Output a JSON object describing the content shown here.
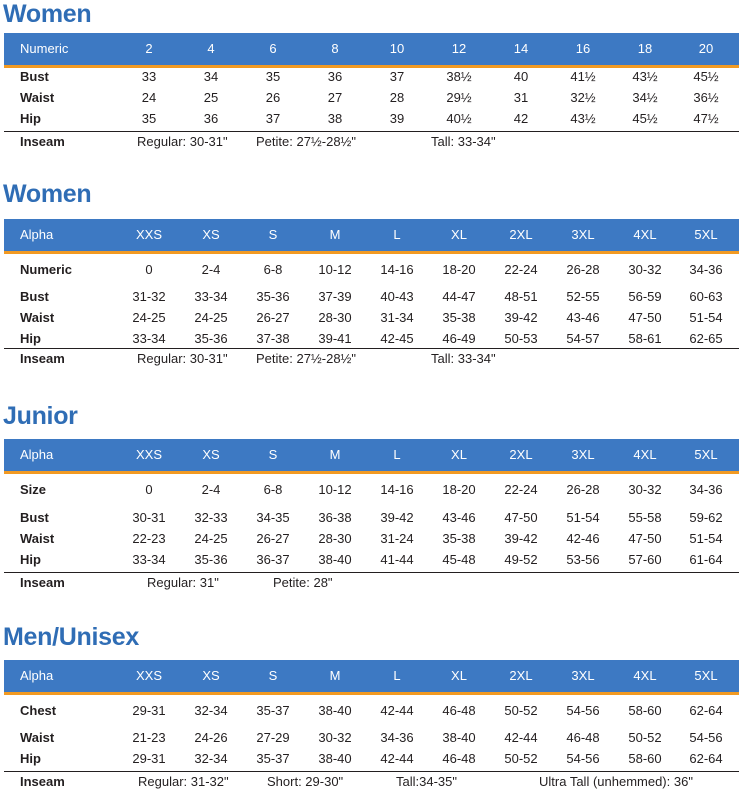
{
  "colors": {
    "title": "#2f6db5",
    "header_bg": "#3d79c3",
    "header_rule": "#f29a22",
    "text": "#231f20"
  },
  "tables": [
    {
      "title": "Women",
      "header_label": "Numeric",
      "columns": [
        "2",
        "4",
        "6",
        "8",
        "10",
        "12",
        "14",
        "16",
        "18",
        "20"
      ],
      "rows": [
        {
          "label": "Bust",
          "values": [
            "33",
            "34",
            "35",
            "36",
            "37",
            "38½",
            "40",
            "41½",
            "43½",
            "45½"
          ]
        },
        {
          "label": "Waist",
          "values": [
            "24",
            "25",
            "26",
            "27",
            "28",
            "29½",
            "31",
            "32½",
            "34½",
            "36½"
          ]
        },
        {
          "label": "Hip",
          "values": [
            "35",
            "36",
            "37",
            "38",
            "39",
            "40½",
            "42",
            "43½",
            "45½",
            "47½"
          ]
        }
      ],
      "inseam_label": "Inseam",
      "inseam": [
        "Regular: 30-31\"",
        "Petite: 27½-28½\"",
        "Tall: 33-34\""
      ]
    },
    {
      "title": "Women",
      "header_label": "Alpha",
      "columns": [
        "XXS",
        "XS",
        "S",
        "M",
        "L",
        "XL",
        "2XL",
        "3XL",
        "4XL",
        "5XL"
      ],
      "rows": [
        {
          "label": "Numeric",
          "values": [
            "0",
            "2-4",
            "6-8",
            "10-12",
            "14-16",
            "18-20",
            "22-24",
            "26-28",
            "30-32",
            "34-36"
          ]
        },
        {
          "label": "Bust",
          "values": [
            "31-32",
            "33-34",
            "35-36",
            "37-39",
            "40-43",
            "44-47",
            "48-51",
            "52-55",
            "56-59",
            "60-63"
          ]
        },
        {
          "label": "Waist",
          "values": [
            "24-25",
            "24-25",
            "26-27",
            "28-30",
            "31-34",
            "35-38",
            "39-42",
            "43-46",
            "47-50",
            "51-54"
          ]
        },
        {
          "label": "Hip",
          "values": [
            "33-34",
            "35-36",
            "37-38",
            "39-41",
            "42-45",
            "46-49",
            "50-53",
            "54-57",
            "58-61",
            "62-65"
          ]
        }
      ],
      "inseam_label": "Inseam",
      "inseam": [
        "Regular: 30-31\"",
        "Petite: 27½-28½\"",
        "Tall: 33-34\""
      ]
    },
    {
      "title": "Junior",
      "header_label": "Alpha",
      "columns": [
        "XXS",
        "XS",
        "S",
        "M",
        "L",
        "XL",
        "2XL",
        "3XL",
        "4XL",
        "5XL"
      ],
      "rows": [
        {
          "label": "Size",
          "values": [
            "0",
            "2-4",
            "6-8",
            "10-12",
            "14-16",
            "18-20",
            "22-24",
            "26-28",
            "30-32",
            "34-36"
          ]
        },
        {
          "label": "Bust",
          "values": [
            "30-31",
            "32-33",
            "34-35",
            "36-38",
            "39-42",
            "43-46",
            "47-50",
            "51-54",
            "55-58",
            "59-62"
          ]
        },
        {
          "label": "Waist",
          "values": [
            "22-23",
            "24-25",
            "26-27",
            "28-30",
            "31-24",
            "35-38",
            "39-42",
            "42-46",
            "47-50",
            "51-54"
          ]
        },
        {
          "label": "Hip",
          "values": [
            "33-34",
            "35-36",
            "36-37",
            "38-40",
            "41-44",
            "45-48",
            "49-52",
            "53-56",
            "57-60",
            "61-64"
          ]
        }
      ],
      "inseam_label": "Inseam",
      "inseam": [
        "Regular: 31\"",
        "Petite: 28\""
      ]
    },
    {
      "title": "Men/Unisex",
      "header_label": "Alpha",
      "columns": [
        "XXS",
        "XS",
        "S",
        "M",
        "L",
        "XL",
        "2XL",
        "3XL",
        "4XL",
        "5XL"
      ],
      "rows": [
        {
          "label": "Chest",
          "values": [
            "29-31",
            "32-34",
            "35-37",
            "38-40",
            "42-44",
            "46-48",
            "50-52",
            "54-56",
            "58-60",
            "62-64"
          ]
        },
        {
          "label": "Waist",
          "values": [
            "21-23",
            "24-26",
            "27-29",
            "30-32",
            "34-36",
            "38-40",
            "42-44",
            "46-48",
            "50-52",
            "54-56"
          ]
        },
        {
          "label": "Hip",
          "values": [
            "29-31",
            "32-34",
            "35-37",
            "38-40",
            "42-44",
            "46-48",
            "50-52",
            "54-56",
            "58-60",
            "62-64"
          ]
        }
      ],
      "inseam_label": "Inseam",
      "inseam": [
        "Regular: 31-32\"",
        "Short: 29-30\"",
        "Tall:34-35\"",
        "Ultra Tall (unhemmed): 36\""
      ]
    }
  ]
}
